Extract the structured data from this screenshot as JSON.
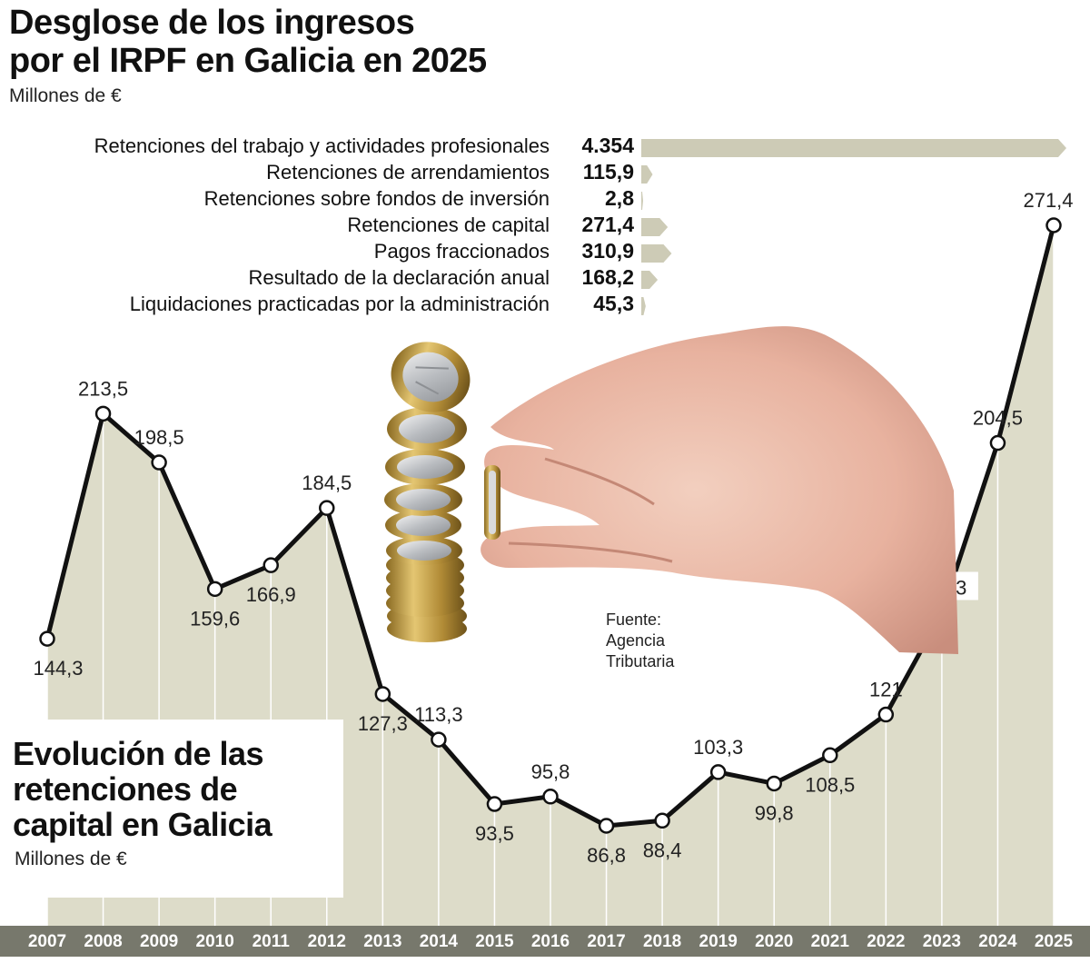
{
  "header": {
    "title_line1": "Desglose de los ingresos",
    "title_line2": "por el IRPF en Galicia en 2025",
    "subtitle": "Millones de €"
  },
  "breakdown": {
    "items": [
      {
        "label": "Retenciones del trabajo y actividades profesionales",
        "display": "4.354",
        "value": 4354
      },
      {
        "label": "Retenciones de arrendamientos",
        "display": "115,9",
        "value": 115.9
      },
      {
        "label": "Retenciones sobre fondos de inversión",
        "display": "2,8",
        "value": 2.8
      },
      {
        "label": "Retenciones de capital",
        "display": "271,4",
        "value": 271.4
      },
      {
        "label": "Pagos fraccionados",
        "display": "310,9",
        "value": 310.9
      },
      {
        "label": "Resultado de la declaración anual",
        "display": "168,2",
        "value": 168.2
      },
      {
        "label": "Liquidaciones practicadas por la administración",
        "display": "45,3",
        "value": 45.3
      }
    ]
  },
  "chart2": {
    "title_line1": "Evolución de las",
    "title_line2": "retenciones de",
    "title_line3": "capital en Galicia",
    "subtitle": "Millones de €"
  },
  "source": {
    "line1": "Fuente:",
    "line2": "Agencia",
    "line3": "Tributaria"
  },
  "chart_data": [
    {
      "type": "bar",
      "orientation": "horizontal",
      "title": "Desglose de los ingresos por el IRPF en Galicia en 2025",
      "unit": "Millones de €",
      "categories": [
        "Retenciones del trabajo y actividades profesionales",
        "Retenciones de arrendamientos",
        "Retenciones sobre fondos de inversión",
        "Retenciones de capital",
        "Pagos fraccionados",
        "Resultado de la declaración anual",
        "Liquidaciones practicadas por la administración"
      ],
      "values": [
        4354,
        115.9,
        2.8,
        271.4,
        310.9,
        168.2,
        45.3
      ]
    },
    {
      "type": "area",
      "title": "Evolución de las retenciones de capital en Galicia",
      "unit": "Millones de €",
      "x": [
        "2007",
        "2008",
        "2009",
        "2010",
        "2011",
        "2012",
        "2013",
        "2014",
        "2015",
        "2016",
        "2017",
        "2018",
        "2019",
        "2020",
        "2021",
        "2022",
        "2023",
        "2024",
        "2025"
      ],
      "values": [
        144.3,
        213.5,
        198.5,
        159.6,
        166.9,
        184.5,
        127.3,
        113.3,
        93.5,
        95.8,
        86.8,
        88.4,
        103.3,
        99.8,
        108.5,
        121,
        152.3,
        204.5,
        271.4
      ],
      "value_labels": [
        "144,3",
        "213,5",
        "198,5",
        "159,6",
        "166,9",
        "184,5",
        "127,3",
        "113,3",
        "93,5",
        "95,8",
        "86,8",
        "88,4",
        "103,3",
        "99,8",
        "108,5",
        "121",
        "152,3",
        "204,5",
        "271,4"
      ],
      "label_side": [
        "below",
        "above",
        "above",
        "below",
        "below",
        "above",
        "below",
        "above",
        "below",
        "above",
        "below",
        "below",
        "above",
        "below",
        "below",
        "above",
        "above",
        "above",
        "above"
      ],
      "grid": false,
      "colors": {
        "area": "#dddcc9",
        "line": "#111111",
        "axis_band": "#77786c"
      }
    }
  ],
  "colors": {
    "bar": "#cdcbb6",
    "area": "#dddcc9",
    "line": "#111111",
    "axis_band": "#77786c",
    "year_text": "#ffffff"
  },
  "icons": {
    "photo": "hand-holding-euro-coin-stack-icon"
  }
}
